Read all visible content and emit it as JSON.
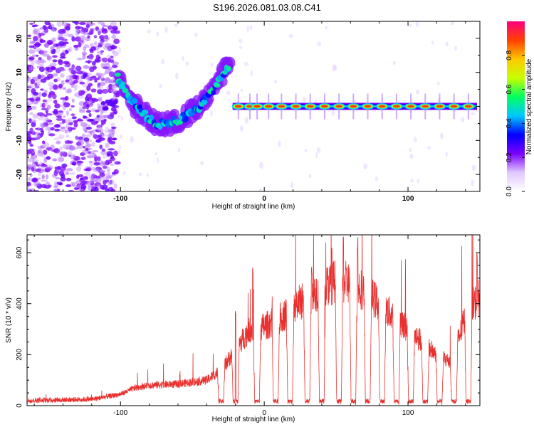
{
  "title": "S196.2026.081.03.08.C41",
  "chart_data": [
    {
      "type": "heatmap",
      "panel": "top",
      "xlabel": "Height of straight line (km)",
      "ylabel": "Frequency (Hz)",
      "xlim": [
        -165,
        150
      ],
      "ylim": [
        -25,
        25
      ],
      "xticks": [
        -100,
        0,
        100
      ],
      "yticks": [
        -20,
        -10,
        0,
        10,
        20
      ],
      "xtick_labels": [
        "-100",
        "0",
        "100"
      ],
      "ytick_labels": [
        "-20",
        "-10",
        "0",
        "10",
        "20"
      ],
      "colorbar": {
        "label": "Normalized spectral amplitude",
        "range": [
          0,
          1
        ],
        "ticks": [
          0,
          0.2,
          0.4,
          0.6,
          0.8
        ],
        "tick_labels": [
          "0.0",
          "0.2",
          "0.4",
          "0.6",
          "0.8"
        ],
        "colors": [
          "#ffffff",
          "#e0c8ff",
          "#7a00ff",
          "#0000ff",
          "#00c8ff",
          "#00ff60",
          "#c8ff00",
          "#ffc800",
          "#ff4000",
          "#ff0080"
        ]
      },
      "noise_region_x": [
        -165,
        -102
      ],
      "tone_curve": [
        {
          "x": -102,
          "y": 9
        },
        {
          "x": -95,
          "y": 3
        },
        {
          "x": -85,
          "y": -2
        },
        {
          "x": -75,
          "y": -5
        },
        {
          "x": -65,
          "y": -5
        },
        {
          "x": -55,
          "y": -3
        },
        {
          "x": -45,
          "y": 0
        },
        {
          "x": -35,
          "y": 5
        },
        {
          "x": -28,
          "y": 10
        },
        {
          "x": -24,
          "y": 12
        }
      ],
      "segment_left": {
        "x": [
          -112,
          -104
        ],
        "y": 0
      },
      "segment_right": {
        "x": [
          -22,
          148
        ],
        "y": 0
      },
      "bright_blobs_x": [
        -18,
        -10,
        -5,
        3,
        12,
        22,
        32,
        42,
        52,
        62,
        72,
        82,
        92,
        102,
        112,
        122,
        132,
        142
      ]
    },
    {
      "type": "line",
      "panel": "bottom",
      "xlabel": "Height of straight line (km)",
      "ylabel": "SNR (10 * v/v)",
      "xlim": [
        -165,
        150
      ],
      "ylim": [
        0,
        670
      ],
      "xticks": [
        -100,
        0,
        100
      ],
      "yticks": [
        0,
        200,
        400,
        600
      ],
      "xtick_labels": [
        "-100",
        "0",
        "100"
      ],
      "ytick_labels": [
        "0",
        "200",
        "400",
        "600"
      ],
      "color": "#e8302e",
      "envelope": [
        {
          "x": -165,
          "y": 20
        },
        {
          "x": -120,
          "y": 25
        },
        {
          "x": -100,
          "y": 45
        },
        {
          "x": -90,
          "y": 70
        },
        {
          "x": -80,
          "y": 80
        },
        {
          "x": -60,
          "y": 85
        },
        {
          "x": -40,
          "y": 100
        },
        {
          "x": -30,
          "y": 140
        },
        {
          "x": -20,
          "y": 220
        },
        {
          "x": -10,
          "y": 300
        },
        {
          "x": 0,
          "y": 310
        },
        {
          "x": 10,
          "y": 340
        },
        {
          "x": 20,
          "y": 380
        },
        {
          "x": 30,
          "y": 430
        },
        {
          "x": 40,
          "y": 460
        },
        {
          "x": 50,
          "y": 490
        },
        {
          "x": 60,
          "y": 480
        },
        {
          "x": 70,
          "y": 450
        },
        {
          "x": 80,
          "y": 400
        },
        {
          "x": 90,
          "y": 350
        },
        {
          "x": 100,
          "y": 300
        },
        {
          "x": 110,
          "y": 250
        },
        {
          "x": 120,
          "y": 200
        },
        {
          "x": 130,
          "y": 170
        },
        {
          "x": 140,
          "y": 350
        },
        {
          "x": 150,
          "y": 430
        }
      ],
      "dips_x": [
        -30,
        -20,
        -5,
        8,
        18,
        30,
        40,
        52,
        62,
        72,
        82,
        92,
        102,
        112,
        122,
        132,
        142
      ],
      "spikes": [
        {
          "x": -20,
          "y": 370
        },
        {
          "x": -8,
          "y": 560
        },
        {
          "x": 33,
          "y": 560
        },
        {
          "x": 47,
          "y": 640
        },
        {
          "x": 55,
          "y": 670
        },
        {
          "x": 65,
          "y": 670
        },
        {
          "x": 148,
          "y": 600
        }
      ]
    }
  ]
}
